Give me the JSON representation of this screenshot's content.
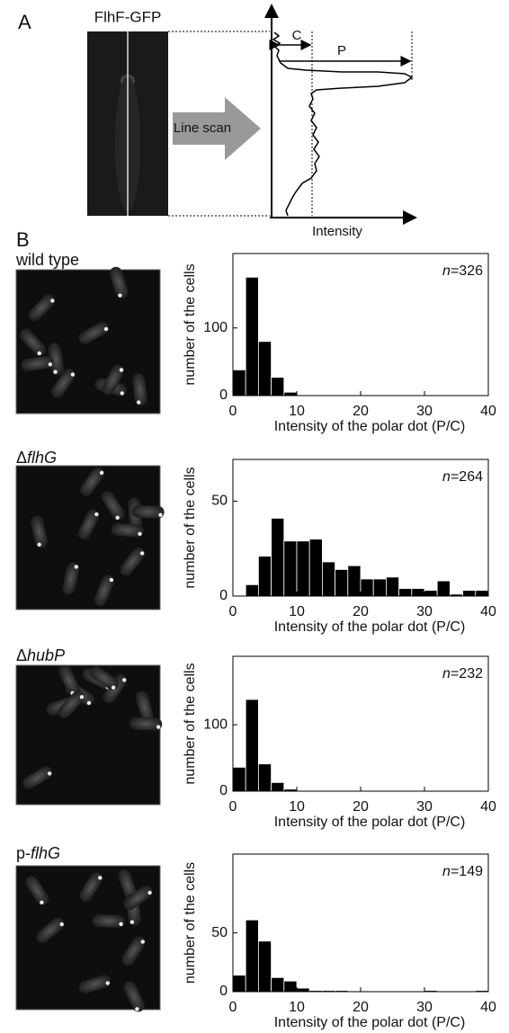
{
  "panel_a": {
    "letter": "A",
    "image_label": "FlhF-GFP",
    "arrow_label": "Line scan",
    "c_label": "C",
    "p_label": "P",
    "axis_label": "Intensity"
  },
  "panel_b": {
    "letter": "B"
  },
  "chart_data": [
    {
      "type": "histogram",
      "title": [
        {
          "text": "wild type"
        }
      ],
      "annotation": [
        {
          "text": "n",
          "italic": true
        },
        {
          "text": "=326"
        }
      ],
      "x_label": "Intensity of the polar dot (P/C)",
      "y_label": "number of the cells",
      "color": "#000000",
      "bins": [
        0,
        2,
        4,
        6,
        8,
        10,
        12,
        14,
        16,
        18,
        20,
        22,
        24,
        26,
        28,
        30,
        32,
        34,
        36,
        38,
        40
      ],
      "values": [
        38,
        175,
        80,
        27,
        5,
        1,
        1,
        0,
        0,
        0,
        0,
        0,
        0,
        0,
        0,
        0,
        0,
        0,
        0,
        0
      ],
      "xlim": [
        0,
        40
      ],
      "xticks": [
        0,
        10,
        20,
        30,
        40
      ],
      "ylim": [
        0,
        210
      ],
      "yticks": [
        0,
        100
      ]
    },
    {
      "type": "histogram",
      "title": [
        {
          "text": "Δ"
        },
        {
          "text": "flhG",
          "italic": true
        }
      ],
      "annotation": [
        {
          "text": "n",
          "italic": true
        },
        {
          "text": "=264"
        }
      ],
      "x_label": "Intensity of the polar dot (P/C)",
      "y_label": "number of the cells",
      "color": "#000000",
      "bins": [
        0,
        2,
        4,
        6,
        8,
        10,
        12,
        14,
        16,
        18,
        20,
        22,
        24,
        26,
        28,
        30,
        32,
        34,
        36,
        38,
        40
      ],
      "values": [
        0,
        6,
        21,
        41,
        29,
        29,
        30,
        18,
        14,
        16,
        9,
        9,
        10,
        4,
        4,
        3,
        8,
        1,
        3,
        3
      ],
      "xlim": [
        0,
        40
      ],
      "xticks": [
        0,
        10,
        20,
        30,
        40
      ],
      "ylim": [
        0,
        72
      ],
      "yticks": [
        0,
        50
      ]
    },
    {
      "type": "histogram",
      "title": [
        {
          "text": "Δ"
        },
        {
          "text": "hubP",
          "italic": true
        }
      ],
      "annotation": [
        {
          "text": "n",
          "italic": true
        },
        {
          "text": "=232"
        }
      ],
      "x_label": "Intensity of the polar dot (P/C)",
      "y_label": "number of the cells",
      "color": "#000000",
      "bins": [
        0,
        2,
        4,
        6,
        8,
        10,
        12,
        14,
        16,
        18,
        20,
        22,
        24,
        26,
        28,
        30,
        32,
        34,
        36,
        38,
        40
      ],
      "values": [
        36,
        138,
        41,
        13,
        3,
        1,
        1,
        0,
        0,
        0,
        0,
        0,
        0,
        0,
        0,
        0,
        0,
        0,
        0,
        0
      ],
      "xlim": [
        0,
        40
      ],
      "xticks": [
        0,
        10,
        20,
        30,
        40
      ],
      "ylim": [
        0,
        203
      ],
      "yticks": [
        0,
        100
      ]
    },
    {
      "type": "histogram",
      "title": [
        {
          "text": "p-"
        },
        {
          "text": "flhG",
          "italic": true
        }
      ],
      "annotation": [
        {
          "text": "n",
          "italic": true
        },
        {
          "text": "=149"
        }
      ],
      "x_label": "Intensity of the polar dot (P/C)",
      "y_label": "number of the cells",
      "color": "#000000",
      "bins": [
        0,
        2,
        4,
        6,
        8,
        10,
        12,
        14,
        16,
        18,
        20,
        22,
        24,
        26,
        28,
        30,
        32,
        34,
        36,
        38,
        40
      ],
      "values": [
        14,
        61,
        43,
        12,
        9,
        3,
        1,
        1,
        1,
        0,
        0,
        0,
        0,
        0,
        0,
        1,
        0,
        0,
        0,
        1
      ],
      "xlim": [
        0,
        40
      ],
      "xticks": [
        0,
        10,
        20,
        30,
        40
      ],
      "ylim": [
        0,
        117
      ],
      "yticks": [
        0,
        50
      ]
    }
  ]
}
